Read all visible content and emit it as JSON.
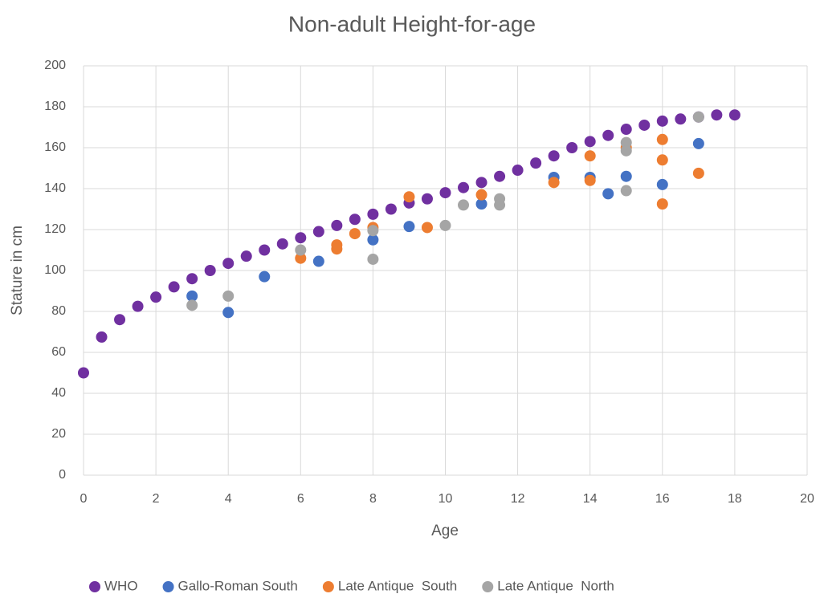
{
  "chart_data": {
    "type": "scatter",
    "title": "Non-adult Height-for-age",
    "x_label": "Age",
    "y_label": "Stature in cm",
    "xlim": [
      0,
      20
    ],
    "xticks": [
      0,
      2,
      4,
      6,
      8,
      10,
      12,
      14,
      16,
      18,
      20
    ],
    "ylim": [
      0,
      200
    ],
    "yticks": [
      0,
      20,
      40,
      60,
      80,
      100,
      120,
      140,
      160,
      180,
      200
    ],
    "grid": true,
    "legend": "bottom",
    "series": [
      {
        "name": "WHO",
        "color": "#7030a0",
        "x": [
          0,
          0.5,
          1,
          1.5,
          2,
          2.5,
          3,
          3.5,
          4,
          4.5,
          5,
          5.5,
          6,
          6.5,
          7,
          7.5,
          8,
          8.5,
          9,
          9.5,
          10,
          10.5,
          11,
          11.5,
          12,
          12.5,
          13,
          13.5,
          14,
          14.5,
          15,
          15.5,
          16,
          16.5,
          17,
          17.5,
          18
        ],
        "values": [
          50,
          67.5,
          76,
          82.5,
          87,
          92,
          96,
          100,
          103.5,
          107,
          110,
          113,
          116,
          119,
          122,
          125,
          127.5,
          130,
          133,
          135,
          138,
          140.5,
          143,
          146,
          149,
          152.5,
          156,
          160,
          163,
          166,
          169,
          171,
          173,
          174,
          175,
          176,
          176
        ]
      },
      {
        "name": "Gallo-Roman South",
        "color": "#4472c4",
        "x": [
          3,
          4,
          5,
          6.5,
          8,
          9,
          11,
          13,
          14,
          14.5,
          15,
          16,
          17
        ],
        "values": [
          87.5,
          79.5,
          97,
          104.5,
          115,
          121.5,
          132.5,
          145.5,
          145.5,
          137.5,
          146,
          142,
          162
        ]
      },
      {
        "name": "Late Antique  South",
        "color": "#ed7d31",
        "x": [
          6,
          7,
          7,
          7.5,
          8,
          9,
          9.5,
          11,
          13,
          14,
          14,
          15,
          16,
          16,
          16,
          17
        ],
        "values": [
          106,
          112.5,
          110.5,
          118,
          121,
          136,
          121,
          137,
          143,
          156,
          144,
          160,
          164,
          154,
          132.5,
          147.5
        ]
      },
      {
        "name": "Late Antique  North",
        "color": "#a5a5a5",
        "x": [
          3,
          4,
          6,
          8,
          8,
          10,
          10.5,
          11.5,
          11.5,
          15,
          15,
          15,
          17
        ],
        "values": [
          83,
          87.5,
          110,
          119.5,
          105.5,
          122,
          132,
          135,
          132,
          162.5,
          158.5,
          139,
          175
        ]
      }
    ]
  }
}
